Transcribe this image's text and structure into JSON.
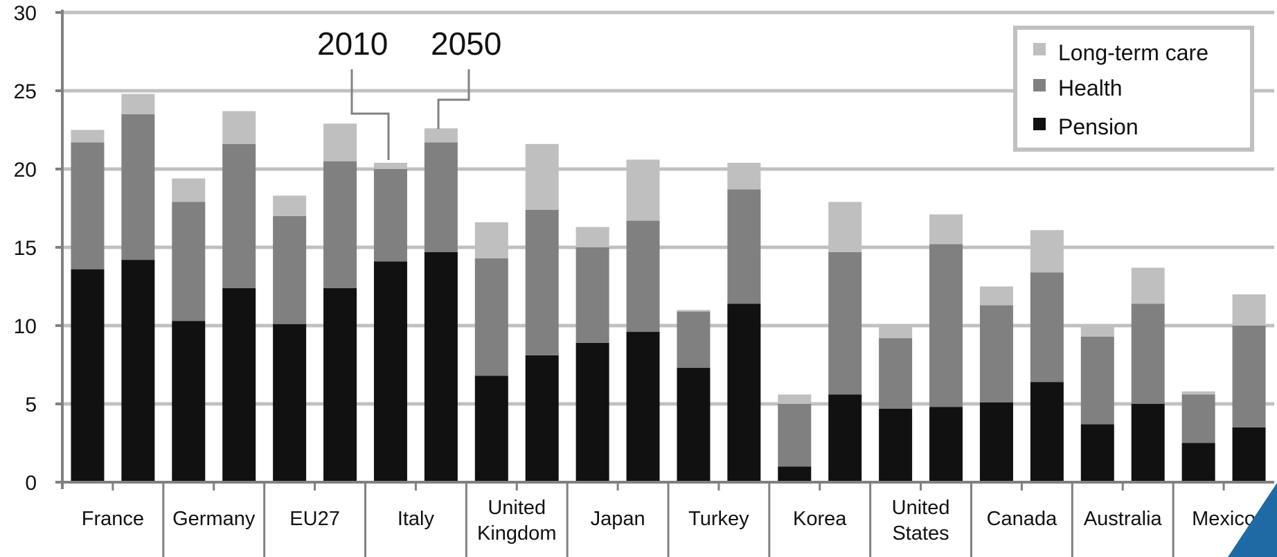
{
  "chart_data": {
    "type": "bar",
    "stacked": true,
    "title": "",
    "xlabel": "",
    "ylabel": "",
    "ylim": [
      0,
      30
    ],
    "y_ticks": [
      "0",
      "5",
      "10",
      "15",
      "20",
      "25",
      "30"
    ],
    "grid": true,
    "legend_position": "top-right",
    "categories": [
      [
        "France"
      ],
      [
        "Germany"
      ],
      [
        "EU27"
      ],
      [
        "Italy"
      ],
      [
        "United",
        "Kingdom"
      ],
      [
        "Japan"
      ],
      [
        "Turkey"
      ],
      [
        "Korea"
      ],
      [
        "United",
        "States"
      ],
      [
        "Canada"
      ],
      [
        "Australia"
      ],
      [
        "Mexico"
      ]
    ],
    "years": [
      "2010",
      "2050"
    ],
    "annotations": [
      "2010",
      "2050"
    ],
    "series": [
      {
        "name": "Pension",
        "values_2010": [
          13.6,
          10.3,
          10.1,
          14.1,
          6.8,
          8.9,
          7.3,
          1.0,
          4.7,
          5.1,
          3.7,
          2.5
        ],
        "values_2050": [
          14.2,
          12.4,
          12.4,
          14.7,
          8.1,
          9.6,
          11.4,
          5.6,
          4.8,
          6.4,
          5.0,
          3.5
        ]
      },
      {
        "name": "Health",
        "values_2010": [
          8.1,
          7.6,
          6.9,
          5.9,
          7.5,
          6.1,
          3.6,
          4.0,
          4.5,
          6.2,
          5.6,
          3.1
        ],
        "values_2050": [
          9.3,
          9.2,
          8.1,
          7.0,
          9.3,
          7.1,
          7.3,
          9.1,
          10.4,
          7.0,
          6.4,
          6.5
        ]
      },
      {
        "name": "Long-term care",
        "values_2010": [
          0.8,
          1.5,
          1.3,
          0.4,
          2.3,
          1.3,
          0.1,
          0.6,
          0.9,
          1.2,
          0.7,
          0.2
        ],
        "values_2050": [
          1.3,
          2.1,
          2.4,
          0.9,
          4.2,
          3.9,
          1.7,
          3.2,
          1.9,
          2.7,
          2.3,
          2.0
        ]
      }
    ],
    "colors": {
      "Pension": "#111111",
      "Health": "#808080",
      "Long-term care": "#bfbfbf",
      "grid": "#c0c0c0",
      "axis": "#808080",
      "corner": "#1f6aa5"
    }
  }
}
